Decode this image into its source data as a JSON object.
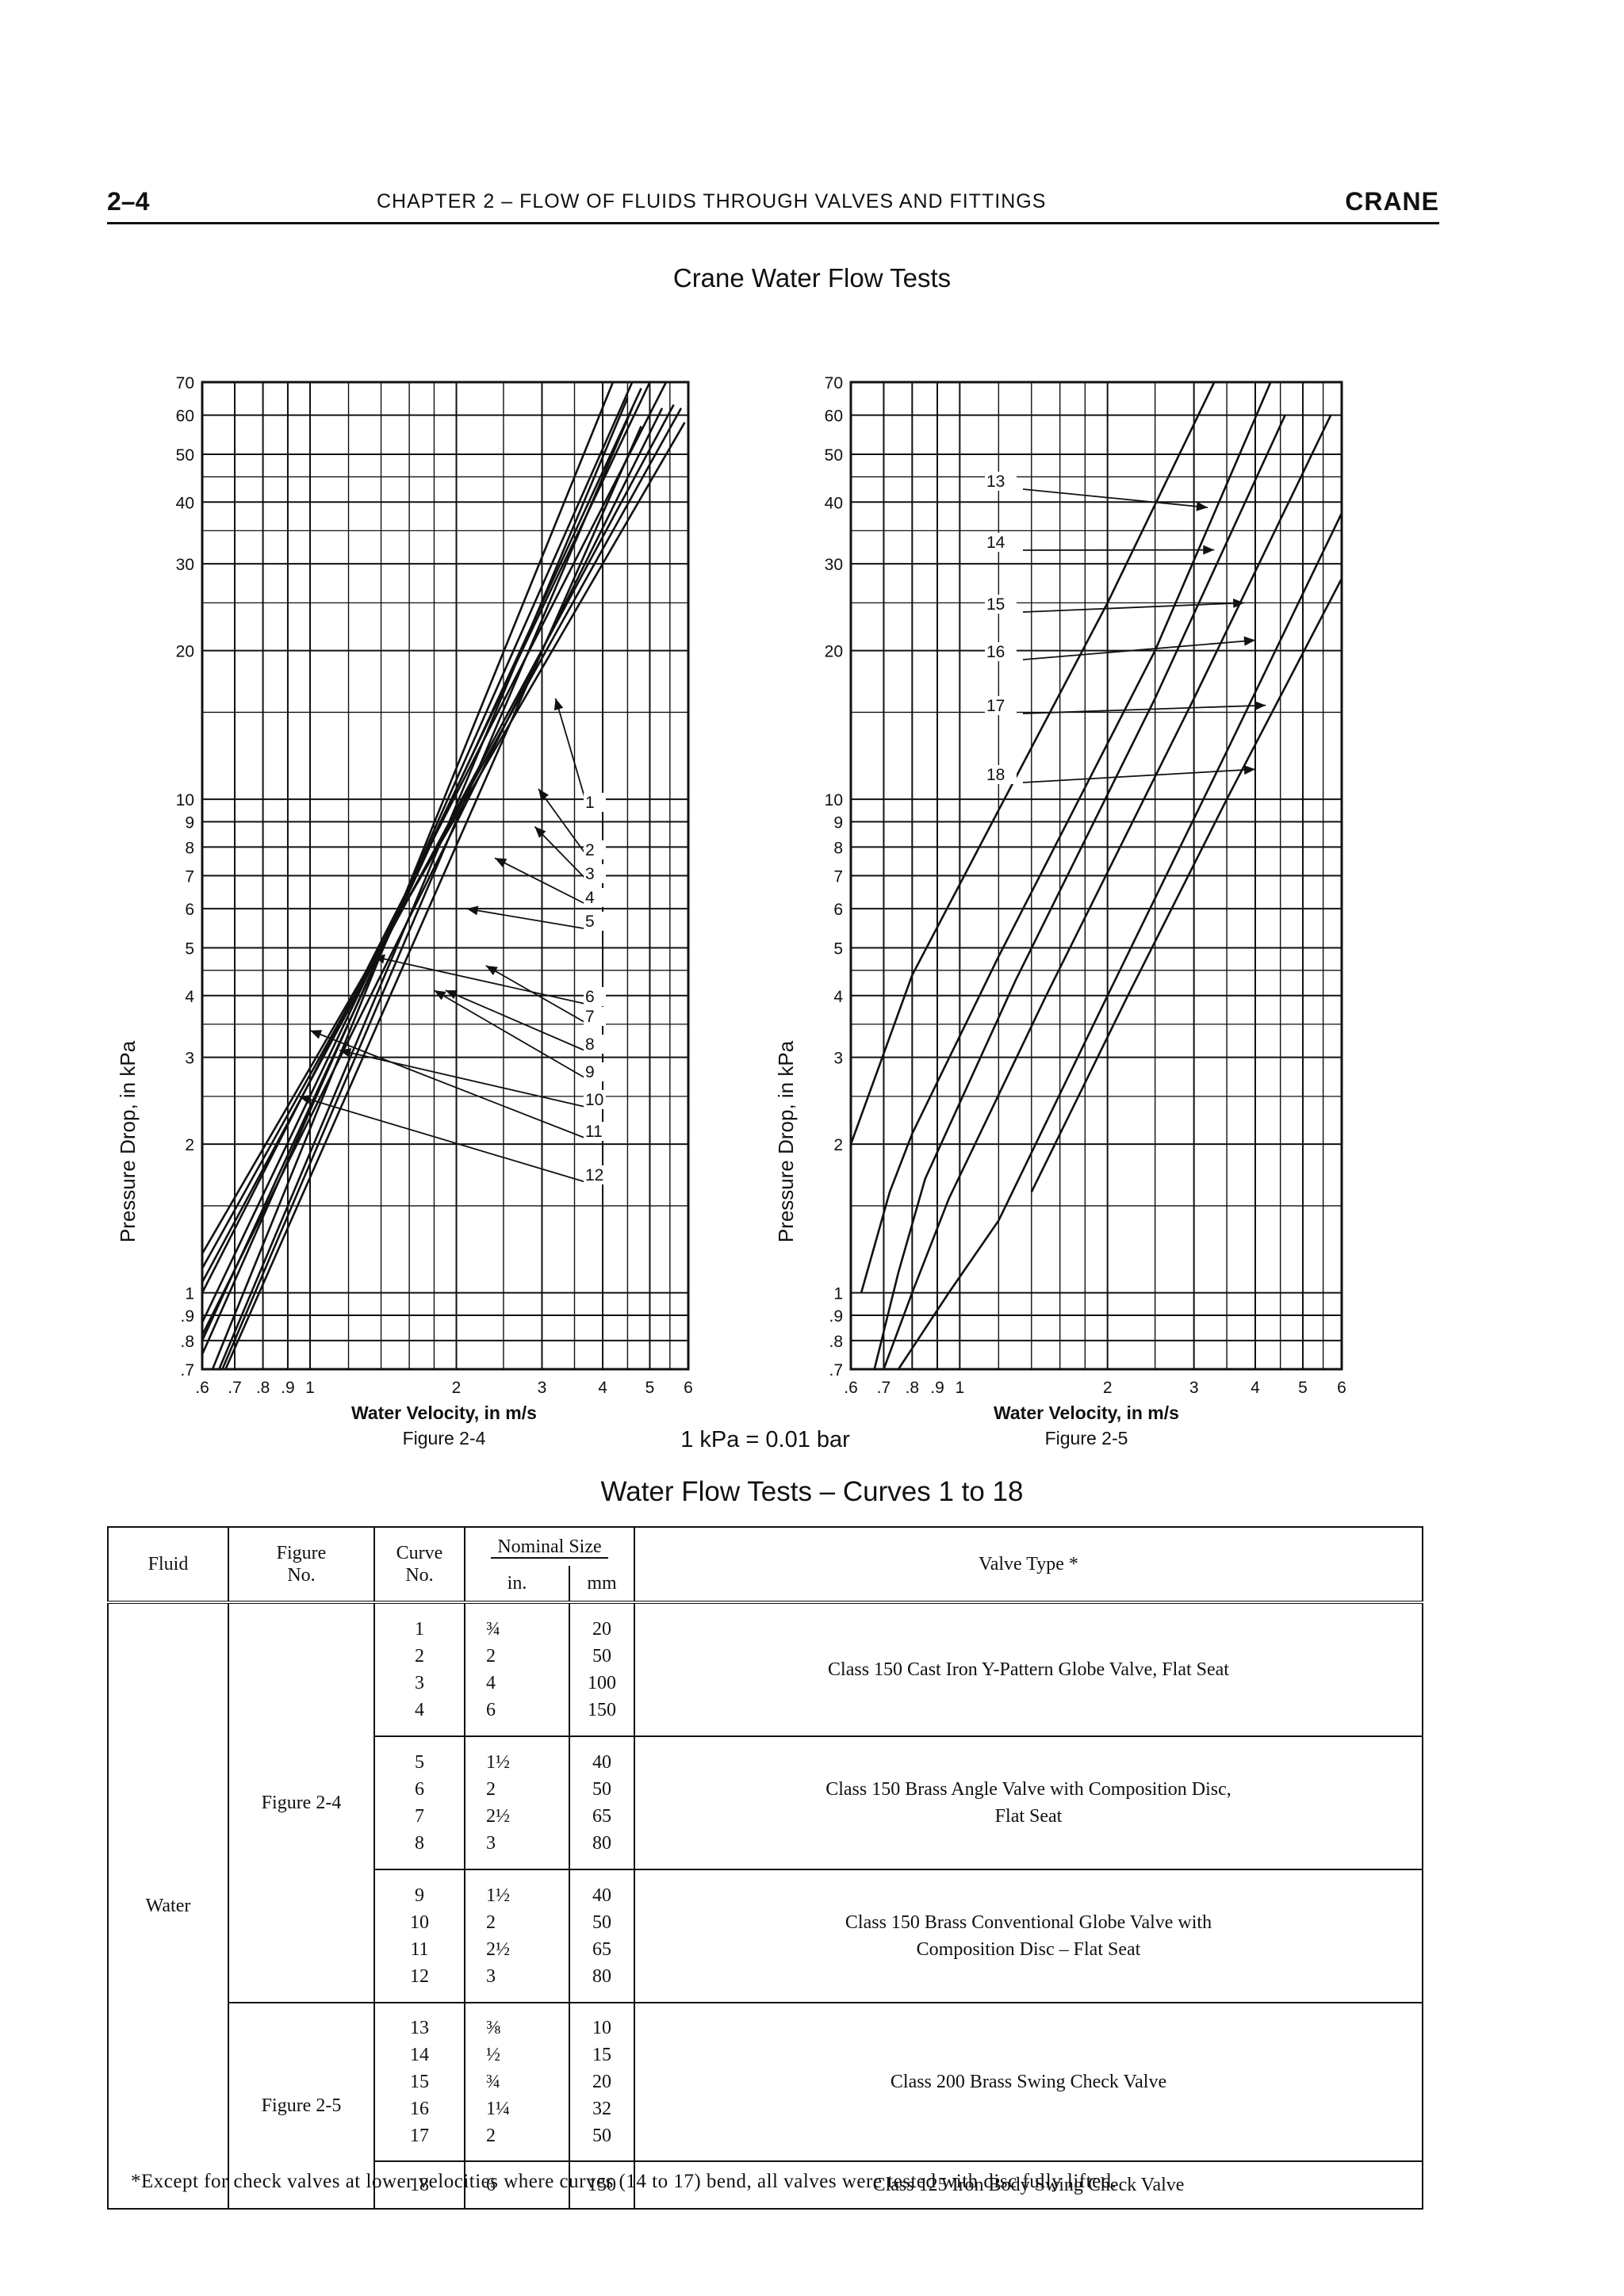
{
  "header": {
    "page_number": "2–4",
    "chapter": "CHAPTER 2 – FLOW OF FLUIDS THROUGH VALVES AND FITTINGS",
    "brand": "CRANE"
  },
  "main_title": "Crane Water Flow Tests",
  "conversion_note": "1 kPa = 0.01 bar",
  "chart_data": [
    {
      "type": "line",
      "figure_label": "Figure 2-4",
      "xlabel": "Water Velocity, in m/s",
      "ylabel": "Pressure Drop, in kPa",
      "x_scale": "log",
      "y_scale": "log",
      "xlim": [
        0.6,
        6
      ],
      "ylim": [
        0.7,
        70
      ],
      "x_ticks": [
        ".6",
        ".7",
        ".8",
        ".9",
        "1",
        "2",
        "3",
        "4",
        "5",
        "6"
      ],
      "y_ticks": [
        ".7",
        ".8",
        ".9",
        "1",
        "2",
        "3",
        "4",
        "5",
        "6",
        "7",
        "8",
        "9",
        "10",
        "20",
        "30",
        "40",
        "50",
        "60",
        "70"
      ],
      "series": [
        {
          "name": "1",
          "x": [
            0.63,
            4.2
          ],
          "y": [
            0.7,
            70
          ]
        },
        {
          "name": "2",
          "x": [
            0.65,
            4.5
          ],
          "y": [
            0.7,
            65
          ]
        },
        {
          "name": "3",
          "x": [
            0.66,
            4.6
          ],
          "y": [
            0.7,
            62
          ]
        },
        {
          "name": "4",
          "x": [
            0.67,
            4.8
          ],
          "y": [
            0.7,
            57
          ]
        },
        {
          "name": "5",
          "x": [
            0.6,
            4.6
          ],
          "y": [
            0.75,
            70
          ]
        },
        {
          "name": "6",
          "x": [
            0.6,
            4.8
          ],
          "y": [
            0.8,
            68
          ]
        },
        {
          "name": "7",
          "x": [
            0.6,
            5.0
          ],
          "y": [
            0.87,
            70
          ]
        },
        {
          "name": "8",
          "x": [
            0.6,
            5.3
          ],
          "y": [
            0.82,
            62
          ]
        },
        {
          "name": "9",
          "x": [
            0.6,
            5.4
          ],
          "y": [
            1.0,
            70
          ]
        },
        {
          "name": "10",
          "x": [
            0.6,
            5.6
          ],
          "y": [
            1.05,
            63
          ]
        },
        {
          "name": "11",
          "x": [
            0.6,
            5.8
          ],
          "y": [
            1.12,
            62
          ]
        },
        {
          "name": "12",
          "x": [
            0.6,
            5.9
          ],
          "y": [
            1.2,
            58
          ]
        }
      ],
      "callouts": [
        {
          "label": "1",
          "x": 3.2,
          "y": 16
        },
        {
          "label": "2",
          "x": 2.95,
          "y": 10.5
        },
        {
          "label": "3",
          "x": 2.9,
          "y": 8.8
        },
        {
          "label": "4",
          "x": 2.4,
          "y": 7.6
        },
        {
          "label": "5",
          "x": 2.1,
          "y": 6.0
        },
        {
          "label": "6",
          "x": 1.35,
          "y": 4.8
        },
        {
          "label": "7",
          "x": 2.3,
          "y": 4.6
        },
        {
          "label": "8",
          "x": 1.9,
          "y": 4.1
        },
        {
          "label": "9",
          "x": 1.8,
          "y": 4.1
        },
        {
          "label": "10",
          "x": 1.15,
          "y": 3.1
        },
        {
          "label": "11",
          "x": 1.0,
          "y": 3.4
        },
        {
          "label": "12",
          "x": 0.95,
          "y": 2.5
        }
      ]
    },
    {
      "type": "line",
      "figure_label": "Figure 2-5",
      "xlabel": "Water Velocity, in m/s",
      "ylabel": "Pressure Drop, in kPa",
      "x_scale": "log",
      "y_scale": "log",
      "xlim": [
        0.6,
        6
      ],
      "ylim": [
        0.7,
        70
      ],
      "x_ticks": [
        ".6",
        ".7",
        ".8",
        ".9",
        "1",
        "2",
        "3",
        "4",
        "5",
        "6"
      ],
      "y_ticks": [
        ".7",
        ".8",
        ".9",
        "1",
        "2",
        "3",
        "4",
        "5",
        "6",
        "7",
        "8",
        "9",
        "10",
        "20",
        "30",
        "40",
        "50",
        "60",
        "70"
      ],
      "series": [
        {
          "name": "13",
          "x": [
            0.6,
            0.8,
            1.2,
            2.0,
            3.3
          ],
          "y": [
            2.0,
            4.4,
            9.5,
            25,
            70
          ]
        },
        {
          "name": "14",
          "x": [
            0.63,
            0.72,
            0.8,
            1.2,
            2.5,
            4.3
          ],
          "y": [
            1.0,
            1.6,
            2.1,
            4.8,
            20,
            70
          ]
        },
        {
          "name": "15",
          "x": [
            0.67,
            0.75,
            0.85,
            1.3,
            2.5,
            4.6
          ],
          "y": [
            0.7,
            1.1,
            1.7,
            4.3,
            16,
            60
          ]
        },
        {
          "name": "16",
          "x": [
            0.7,
            0.8,
            0.95,
            1.5,
            3.0,
            5.7
          ],
          "y": [
            0.7,
            1.0,
            1.55,
            4.0,
            16,
            60
          ]
        },
        {
          "name": "17",
          "x": [
            0.75,
            0.95,
            1.2,
            2.0,
            3.5,
            6.0
          ],
          "y": [
            0.7,
            1.0,
            1.4,
            4.0,
            12.5,
            38
          ]
        },
        {
          "name": "18",
          "x": [
            1.4,
            2.2,
            3.5,
            6.0
          ],
          "y": [
            1.6,
            4.0,
            10,
            28
          ]
        }
      ],
      "callouts": [
        {
          "label": "13",
          "x": 3.2,
          "y": 39
        },
        {
          "label": "14",
          "x": 3.3,
          "y": 32
        },
        {
          "label": "15",
          "x": 3.8,
          "y": 25
        },
        {
          "label": "16",
          "x": 4.0,
          "y": 21
        },
        {
          "label": "17",
          "x": 4.2,
          "y": 15.5
        },
        {
          "label": "18",
          "x": 4.0,
          "y": 11.5
        }
      ]
    }
  ],
  "figures": {
    "fig24_label": "Figure 2-4",
    "fig25_label": "Figure 2-5",
    "xlabel": "Water Velocity, in m/s",
    "ylabel": "Pressure Drop, in kPa"
  },
  "table": {
    "title": "Water Flow Tests – Curves 1 to 18",
    "headers": {
      "fluid": "Fluid",
      "figure_l1": "Figure",
      "figure_l2": "No.",
      "curve_l1": "Curve",
      "curve_l2": "No.",
      "nominal": "Nominal Size",
      "in": "in.",
      "mm": "mm",
      "valve_type": "Valve Type *"
    },
    "fluid": "Water",
    "groups": [
      {
        "figure": "",
        "curves": [
          "1",
          "2",
          "3",
          "4"
        ],
        "in": [
          "¾",
          "2",
          "4",
          "6"
        ],
        "mm": [
          "20",
          "50",
          "100",
          "150"
        ],
        "valve_l1": "Class 150 Cast Iron Y-Pattern Globe Valve, Flat Seat",
        "valve_l2": ""
      },
      {
        "figure": "Figure 2-4",
        "curves": [
          "5",
          "6",
          "7",
          "8"
        ],
        "in": [
          "1½",
          "2",
          "2½",
          "3"
        ],
        "mm": [
          "40",
          "50",
          "65",
          "80"
        ],
        "valve_l1": "Class 150 Brass Angle Valve with Composition Disc,",
        "valve_l2": "Flat Seat"
      },
      {
        "figure": "",
        "curves": [
          "9",
          "10",
          "11",
          "12"
        ],
        "in": [
          "1½",
          "2",
          "2½",
          "3"
        ],
        "mm": [
          "40",
          "50",
          "65",
          "80"
        ],
        "valve_l1": "Class 150 Brass Conventional Globe Valve with",
        "valve_l2": "Composition Disc – Flat Seat"
      },
      {
        "figure": "Figure 2-5",
        "curves": [
          "13",
          "14",
          "15",
          "16",
          "17"
        ],
        "in": [
          "⅜",
          "½",
          "¾",
          "1¼",
          "2"
        ],
        "mm": [
          "10",
          "15",
          "20",
          "32",
          "50"
        ],
        "valve_l1": "Class 200 Brass Swing Check Valve",
        "valve_l2": ""
      },
      {
        "figure": "",
        "curves": [
          "18"
        ],
        "in": [
          "6"
        ],
        "mm": [
          "150"
        ],
        "valve_l1": "Class 125 Iron Body Swing Check Valve",
        "valve_l2": ""
      }
    ]
  },
  "footnote": "*Except for check valves at lower velocities where curves (14 to 17) bend, all valves were tested with disc fully lifted."
}
